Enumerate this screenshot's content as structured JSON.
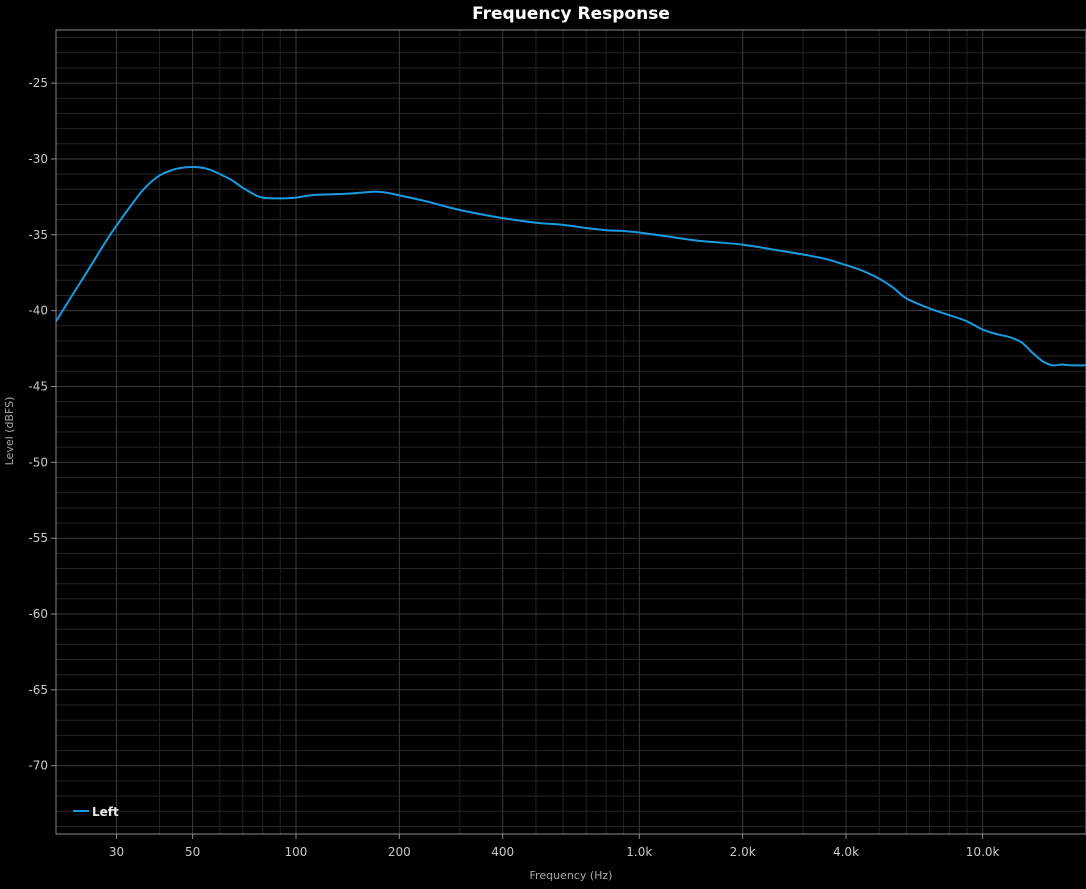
{
  "chart_data": {
    "type": "line",
    "title": "Frequency Response",
    "xlabel": "Frequency (Hz)",
    "ylabel": "Level (dBFS)",
    "x_scale": "log",
    "xlim": [
      20,
      20000
    ],
    "ylim": [
      -74.5,
      -21.5
    ],
    "grid": true,
    "legend_position": "bottom-left",
    "x_ticks": [
      {
        "value": 30,
        "label": "30"
      },
      {
        "value": 50,
        "label": "50"
      },
      {
        "value": 100,
        "label": "100"
      },
      {
        "value": 200,
        "label": "200"
      },
      {
        "value": 400,
        "label": "400"
      },
      {
        "value": 1000,
        "label": "1.0k"
      },
      {
        "value": 2000,
        "label": "2.0k"
      },
      {
        "value": 4000,
        "label": "4.0k"
      },
      {
        "value": 10000,
        "label": "10.0k"
      }
    ],
    "y_ticks": [
      {
        "value": -25,
        "label": "-25"
      },
      {
        "value": -30,
        "label": "-30"
      },
      {
        "value": -35,
        "label": "-35"
      },
      {
        "value": -40,
        "label": "-40"
      },
      {
        "value": -45,
        "label": "-45"
      },
      {
        "value": -50,
        "label": "-50"
      },
      {
        "value": -55,
        "label": "-55"
      },
      {
        "value": -60,
        "label": "-60"
      },
      {
        "value": -65,
        "label": "-65"
      },
      {
        "value": -70,
        "label": "-70"
      }
    ],
    "series": [
      {
        "name": "Left",
        "color": "#1a9be0",
        "x": [
          20,
          22,
          25,
          28,
          30,
          33,
          36,
          40,
          44,
          48,
          52,
          56,
          60,
          65,
          70,
          75,
          80,
          90,
          100,
          110,
          120,
          140,
          160,
          170,
          180,
          200,
          240,
          280,
          320,
          400,
          500,
          600,
          700,
          800,
          900,
          1000,
          1200,
          1500,
          2000,
          2500,
          3000,
          3500,
          4000,
          4500,
          5000,
          5500,
          6000,
          7000,
          8000,
          9000,
          10000,
          11000,
          12000,
          13000,
          14000,
          15000,
          16000,
          17000,
          18000,
          20000
        ],
        "y": [
          -40.7,
          -39.2,
          -37.2,
          -35.4,
          -34.4,
          -33.1,
          -32.0,
          -31.1,
          -30.7,
          -30.55,
          -30.55,
          -30.7,
          -31.0,
          -31.4,
          -31.9,
          -32.3,
          -32.55,
          -32.6,
          -32.55,
          -32.4,
          -32.35,
          -32.3,
          -32.2,
          -32.15,
          -32.2,
          -32.4,
          -32.8,
          -33.2,
          -33.5,
          -33.9,
          -34.2,
          -34.35,
          -34.55,
          -34.7,
          -34.75,
          -34.85,
          -35.1,
          -35.4,
          -35.65,
          -36.0,
          -36.3,
          -36.6,
          -37.0,
          -37.4,
          -37.9,
          -38.5,
          -39.2,
          -39.85,
          -40.3,
          -40.7,
          -41.25,
          -41.55,
          -41.75,
          -42.1,
          -42.8,
          -43.35,
          -43.6,
          -43.55,
          -43.6,
          -43.6
        ]
      }
    ]
  }
}
